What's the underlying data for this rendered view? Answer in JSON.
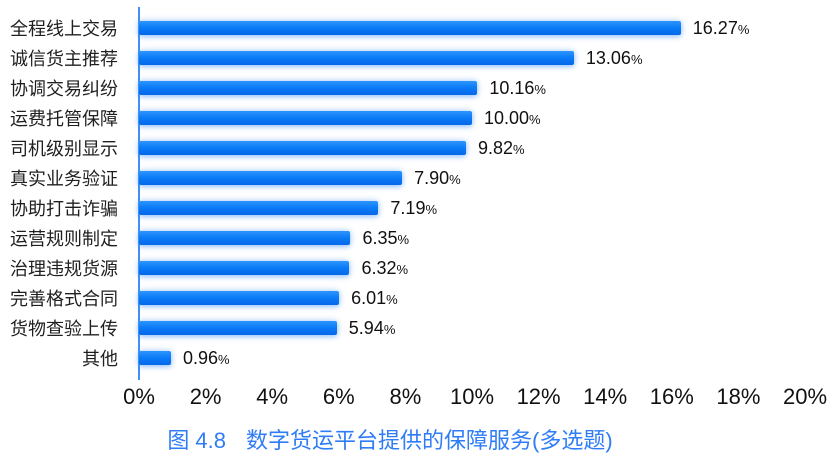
{
  "chart_data": {
    "type": "bar",
    "orientation": "horizontal",
    "categories": [
      "全程线上交易",
      "诚信货主推荐",
      "协调交易纠纷",
      "运费托管保障",
      "司机级别显示",
      "真实业务验证",
      "协助打击诈骗",
      "运营规则制定",
      "治理违规货源",
      "完善格式合同",
      "货物查验上传",
      "其他"
    ],
    "values": [
      16.27,
      13.06,
      10.16,
      10.0,
      9.82,
      7.9,
      7.19,
      6.35,
      6.32,
      6.01,
      5.94,
      0.96
    ],
    "value_labels": [
      "16.27",
      "13.06",
      "10.16",
      "10.00",
      "9.82",
      "7.90",
      "7.19",
      "6.35",
      "6.32",
      "6.01",
      "5.94",
      "0.96"
    ],
    "unit": "%",
    "xlim": [
      0,
      20
    ],
    "x_tick_labels": [
      "0%",
      "2%",
      "4%",
      "6%",
      "8%",
      "10%",
      "12%",
      "14%",
      "16%",
      "18%",
      "20%"
    ],
    "x_tick_values": [
      0,
      2,
      4,
      6,
      8,
      10,
      12,
      14,
      16,
      18,
      20
    ],
    "grid": false,
    "legend": "none",
    "caption_prefix": "图 4.8",
    "caption_text": "数字货运平台提供的保障服务(多选题)",
    "colors": {
      "bar": "#0b7bf7",
      "bar_gradient_top": "#2e95fc",
      "bar_gradient_bottom": "#0568e8",
      "axis_line": "#4090f7",
      "caption": "#2e7cf6",
      "text": "#111111"
    }
  }
}
